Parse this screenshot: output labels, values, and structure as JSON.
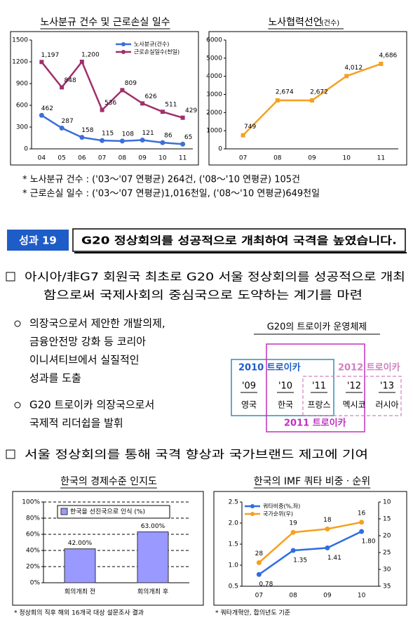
{
  "chart_data": [
    {
      "type": "line",
      "title": "노사분규 건수 및 근로손실 일수",
      "categories": [
        "04",
        "05",
        "06",
        "07",
        "08",
        "09",
        "10",
        "11"
      ],
      "series": [
        {
          "name": "노사분규(건수)",
          "color": "#3c6fd8",
          "values": [
            462,
            287,
            158,
            115,
            108,
            121,
            86,
            65
          ]
        },
        {
          "name": "근로손실일수(천일)",
          "color": "#a0306a",
          "values": [
            1197,
            848,
            1200,
            536,
            809,
            626,
            511,
            429
          ],
          "value_labels": [
            "1,197",
            "848",
            "1,200",
            "536",
            "809",
            "626",
            "511",
            "429"
          ]
        }
      ],
      "ylim": [
        0,
        1500
      ],
      "yticks": [
        0,
        300,
        600,
        900,
        1200,
        1500
      ],
      "legend": "top-right"
    },
    {
      "type": "line",
      "title": "노사협력선언",
      "subtitle": "(건수)",
      "categories": [
        "07",
        "08",
        "09",
        "10",
        "11"
      ],
      "series": [
        {
          "name": "노사협력선언",
          "color": "#f5a020",
          "values": [
            749,
            2674,
            2672,
            4012,
            4686
          ],
          "value_labels": [
            "749",
            "2,674",
            "2,672",
            "4,012",
            "4,686"
          ]
        }
      ],
      "ylim": [
        0,
        6000
      ],
      "yticks": [
        0,
        1000,
        2000,
        3000,
        4000,
        5000,
        6000
      ]
    },
    {
      "type": "bar",
      "title": "한국의 경제수준 인지도",
      "categories": [
        "회의개최 전",
        "회의개최 후"
      ],
      "series": [
        {
          "name": "한국을 선진국으로 인식 (%)",
          "color": "#9999ff",
          "values": [
            42,
            63
          ],
          "value_labels": [
            "42.00%",
            "63.00%"
          ]
        }
      ],
      "ylim": [
        0,
        100
      ],
      "yticks": [
        {
          "value": 0,
          "label": "0%"
        },
        {
          "value": 20,
          "label": "20%"
        },
        {
          "value": 40,
          "label": "40%"
        },
        {
          "value": 60,
          "label": "60%"
        },
        {
          "value": 80,
          "label": "80%"
        },
        {
          "value": 100,
          "label": "100%"
        }
      ],
      "grid": true,
      "legend": "top",
      "note": "* 정상회의 직후 해외 16개국 대상 설문조사 결과"
    },
    {
      "type": "line",
      "title": "한국의 IMF 쿼타 비중ㆍ순위",
      "categories": [
        "07",
        "08",
        "09",
        "10"
      ],
      "series": [
        {
          "name": "쿼타비중(%,좌)",
          "color": "#2f6ee0",
          "values": [
            0.78,
            1.35,
            1.41,
            1.8
          ],
          "value_labels": [
            "0.78",
            "1.35",
            "1.41",
            "1.80"
          ]
        },
        {
          "name": "국가순위(우)",
          "color": "#f5a020",
          "values": [
            28,
            19,
            18,
            16
          ],
          "axis": "y2"
        }
      ],
      "ylim": [
        0.5,
        2.5
      ],
      "yticks": [
        0.5,
        {
          "value": 1,
          "label": "1.0"
        },
        1.5,
        {
          "value": 2,
          "label": "2.0"
        },
        2.5
      ],
      "y2lim": [
        10,
        35
      ],
      "y2ticks": [
        10,
        15,
        20,
        25,
        30,
        35
      ],
      "y2_reversed": true,
      "legend": "top-left",
      "note": "* 쿼타개혁안, 합의년도 기준"
    }
  ],
  "notes_top": [
    "* 노사분규 건수 : ('03～'07 연평균)     264건, ('08～'10 연평균)   105건",
    "* 근로손실 일수 : ('03～'07 연평균)1,016천일, ('08～'10 연평균)649천일"
  ],
  "section": {
    "badge": "성과 19",
    "headline": "G20 정상회의를 성공적으로 개최하여 국격을 높였습니다."
  },
  "paragraph1": [
    "아시아/非G7 회원국 최초로 G20 서울 정상회의를 성공적으로 개최",
    "함으로써 국제사회의 중심국으로 도약하는 계기를 마련"
  ],
  "bullet1": [
    "의장국으로서 제안한 개발의제,",
    "금융안전망 강화 등 코리아",
    "이니셔티브에서 실질적인",
    "성과를 도출"
  ],
  "bullet2": [
    "G20 트로이카 의장국으로서",
    "국제적 리더쉽을 발휘"
  ],
  "troika": {
    "title": "G20의 트로이카 운영체제",
    "groups": [
      "2010 트로이카",
      "2011 트로이카",
      "2012 트로이카"
    ],
    "years": [
      "'09",
      "'10",
      "'11",
      "'12",
      "'13"
    ],
    "countries": [
      "영국",
      "한국",
      "프랑스",
      "멕시코",
      "러시아"
    ]
  },
  "paragraph2": "서울 정상회의를 통해 국격 향상과 국가브랜드 제고에 기여"
}
